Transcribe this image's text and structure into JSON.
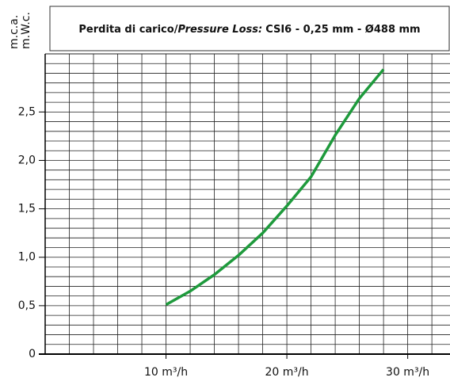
{
  "chart_data": {
    "type": "line",
    "title_prefix": "Perdita di carico/",
    "title_italic": "Pressure Loss:",
    "title_suffix": "CSI6 - 0,25 mm - Ø488 mm",
    "ylabel": [
      "m.c.a.",
      "m.W.c."
    ],
    "x": [
      10,
      12,
      14,
      16,
      18,
      20,
      22,
      24,
      26,
      28
    ],
    "series": [
      {
        "name": "CSI6",
        "color": "#1e9a3c",
        "values": [
          0.51,
          0.65,
          0.82,
          1.02,
          1.25,
          1.53,
          1.83,
          2.26,
          2.64,
          2.94
        ]
      }
    ],
    "xlim": [
      0,
      33.5
    ],
    "ylim": [
      0,
      3.1
    ],
    "xticks": [
      {
        "value": 10,
        "label": "10 m³/h"
      },
      {
        "value": 20,
        "label": "20 m³/h"
      },
      {
        "value": 30,
        "label": "30 m³/h"
      }
    ],
    "yticks": [
      0,
      {
        "value": 0.5,
        "label": "0,5"
      },
      {
        "value": 1.0,
        "label": "1,0"
      },
      {
        "value": 1.5,
        "label": "1,5"
      },
      {
        "value": 2.0,
        "label": "2,0"
      },
      {
        "value": 2.5,
        "label": "2,5"
      }
    ],
    "xgrid": [
      2,
      4,
      6,
      8,
      10,
      12,
      14,
      16,
      18,
      20,
      22,
      24,
      26,
      28,
      30,
      32
    ],
    "ygrid": [
      0.1,
      0.2,
      0.3,
      0.4,
      0.5,
      0.6,
      0.7,
      0.8,
      0.9,
      1.0,
      1.1,
      1.2,
      1.3,
      1.4,
      1.5,
      1.6,
      1.7,
      1.8,
      1.9,
      2.0,
      2.1,
      2.2,
      2.3,
      2.4,
      2.5,
      2.6,
      2.7,
      2.8,
      2.9,
      3.0
    ],
    "grid": true
  }
}
